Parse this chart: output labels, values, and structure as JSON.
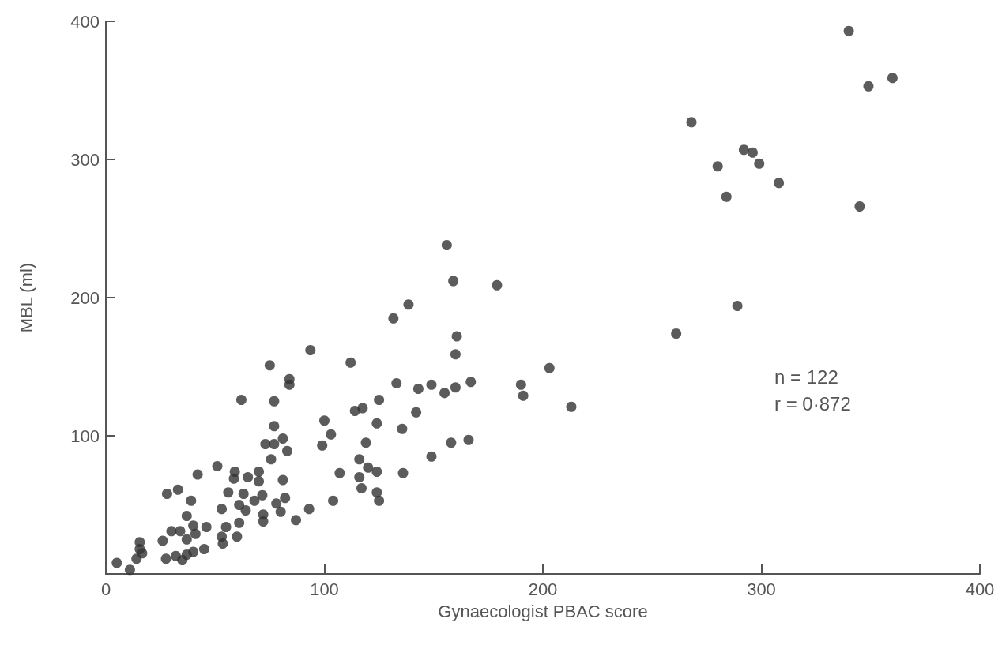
{
  "chart_data": {
    "type": "scatter",
    "xlabel": "Gynaecologist PBAC score",
    "ylabel": "MBL (ml)",
    "annotations": [
      "n = 122",
      "r = 0·872"
    ],
    "xlim": [
      0,
      400
    ],
    "xticks": [
      0,
      100,
      200,
      300,
      400
    ],
    "ylim": [
      0,
      400
    ],
    "yticks": [
      100,
      200,
      300,
      400
    ],
    "grid": false,
    "marker": "circle",
    "series": [
      {
        "color": "#333333",
        "x": [
          340,
          360,
          349,
          268,
          292,
          296,
          280,
          299,
          308,
          284,
          345,
          289,
          261,
          138.5,
          131.6,
          160.6,
          160,
          93.6,
          75,
          112,
          203,
          84,
          84,
          62,
          77,
          133,
          143,
          149,
          155,
          160,
          167,
          190,
          191,
          125,
          114,
          117.5,
          142,
          100,
          124,
          135.6,
          77,
          103,
          99,
          119,
          158,
          166,
          149,
          73,
          77,
          81,
          83,
          75.6,
          116,
          107,
          136,
          120,
          124,
          116,
          117,
          124,
          125,
          104,
          81,
          93,
          87,
          70,
          65,
          70,
          63,
          71.6,
          68,
          82,
          78,
          80,
          72,
          72,
          64,
          61,
          42,
          51,
          59,
          58.6,
          28,
          33,
          39,
          56,
          53,
          61,
          37,
          40,
          41,
          46,
          37,
          34,
          26,
          30,
          55,
          53,
          53.5,
          60,
          45,
          27.5,
          32,
          37,
          35,
          40,
          15.5,
          16.6,
          14,
          15.5,
          5,
          11,
          156,
          159,
          179,
          213
        ],
        "values": [
          393,
          359,
          353,
          327,
          307,
          305,
          295,
          297,
          283,
          273,
          266,
          194,
          174,
          195,
          185,
          172,
          159,
          162,
          151,
          153,
          149,
          141,
          137,
          126,
          125,
          138,
          134,
          137,
          131,
          135,
          139,
          137,
          129,
          126,
          118,
          120,
          117,
          111,
          109,
          105,
          107,
          101,
          93,
          95,
          95,
          97,
          85,
          94,
          94,
          98,
          89,
          83,
          83,
          73,
          73,
          77,
          74,
          70,
          62,
          59,
          53,
          53,
          68,
          47,
          39,
          74,
          70,
          67,
          58,
          57,
          53,
          55,
          51,
          45,
          43,
          38,
          46,
          37,
          72,
          78,
          74,
          69,
          58,
          61,
          53,
          59,
          47,
          50,
          42,
          35,
          29,
          34,
          25,
          31,
          24,
          31,
          34,
          27,
          22,
          27,
          18,
          11,
          13,
          14,
          10,
          16,
          23,
          15,
          11,
          18,
          8,
          3,
          238,
          212,
          209,
          121
        ]
      }
    ]
  }
}
